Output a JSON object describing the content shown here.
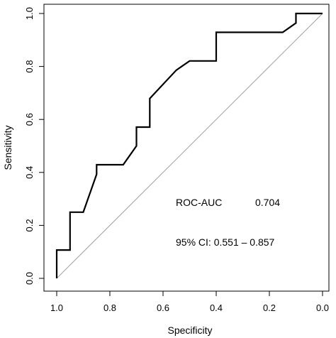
{
  "chart_data": {
    "type": "line",
    "title": "",
    "xlabel": "Specificity",
    "ylabel": "Sensitivity",
    "x_reversed": true,
    "xlim": [
      1.0,
      0.0
    ],
    "ylim": [
      0.0,
      1.0
    ],
    "xticks": [
      1.0,
      0.8,
      0.6,
      0.4,
      0.2,
      0.0
    ],
    "yticks": [
      0.0,
      0.2,
      0.4,
      0.6,
      0.8,
      1.0
    ],
    "xtick_labels": [
      "1.0",
      "0.8",
      "0.6",
      "0.4",
      "0.2",
      "0.0"
    ],
    "ytick_labels": [
      "0.0",
      "0.2",
      "0.4",
      "0.6",
      "0.8",
      "1.0"
    ],
    "grid": false,
    "reference_line": {
      "from": [
        1.0,
        0.0
      ],
      "to": [
        0.0,
        1.0
      ],
      "color": "#a0a0a0"
    },
    "series": [
      {
        "color": "#000000",
        "points": [
          [
            1.0,
            0.0
          ],
          [
            1.0,
            0.107
          ],
          [
            0.95,
            0.107
          ],
          [
            0.95,
            0.25
          ],
          [
            0.9,
            0.25
          ],
          [
            0.85,
            0.393
          ],
          [
            0.85,
            0.429
          ],
          [
            0.75,
            0.429
          ],
          [
            0.7,
            0.5
          ],
          [
            0.7,
            0.571
          ],
          [
            0.65,
            0.571
          ],
          [
            0.65,
            0.679
          ],
          [
            0.55,
            0.786
          ],
          [
            0.5,
            0.821
          ],
          [
            0.4,
            0.821
          ],
          [
            0.4,
            0.929
          ],
          [
            0.15,
            0.929
          ],
          [
            0.1,
            0.964
          ],
          [
            0.1,
            1.0
          ],
          [
            0.0,
            1.0
          ]
        ]
      }
    ],
    "annotations": {
      "auc_label": "ROC-AUC",
      "auc_value": "0.704",
      "ci_text": "95% CI: 0.551 – 0.857"
    }
  }
}
